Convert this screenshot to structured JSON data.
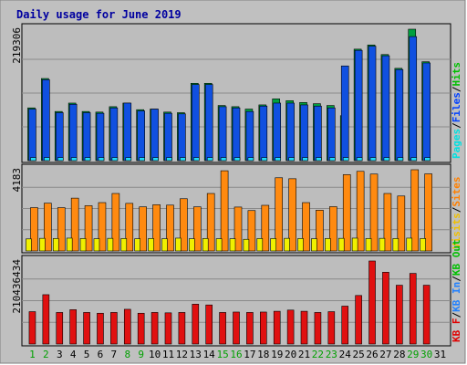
{
  "chart_data": {
    "type": "bar",
    "title": "Daily usage for June 2019",
    "categories": [
      "1",
      "2",
      "3",
      "4",
      "5",
      "6",
      "7",
      "8",
      "9",
      "10",
      "11",
      "12",
      "13",
      "14",
      "15",
      "16",
      "17",
      "18",
      "19",
      "20",
      "21",
      "22",
      "23",
      "24",
      "25",
      "26",
      "27",
      "28",
      "29",
      "30",
      "31"
    ],
    "weekend_days": [
      "1",
      "2",
      "8",
      "9",
      "15",
      "16",
      "22",
      "23",
      "29",
      "30"
    ],
    "panels": [
      {
        "id": "top",
        "ymax_label": "219306",
        "ymax": 219306,
        "legend": [
          {
            "text": "Pages",
            "color": "#00e0e0"
          },
          {
            "text": "Files",
            "color": "#0040ff"
          },
          {
            "text": "Hits",
            "color": "#00c000"
          }
        ],
        "series": [
          {
            "name": "Hits",
            "color": "#00a040",
            "values": [
              88000,
              137000,
              82000,
              96000,
              82000,
              81000,
              90000,
              96000,
              85000,
              86000,
              81000,
              80000,
              129000,
              129000,
              92000,
              90000,
              86000,
              93000,
              103000,
              100000,
              97000,
              95000,
              92000,
              75000,
              186000,
              193000,
              177000,
              154000,
              219306,
              165000,
              0
            ]
          },
          {
            "name": "Files",
            "color": "#1050e0",
            "values": [
              86000,
              135000,
              80000,
              94000,
              80000,
              79000,
              88000,
              96000,
              83000,
              86000,
              79000,
              78000,
              127000,
              127000,
              90000,
              88000,
              82000,
              91000,
              96000,
              96000,
              93000,
              91000,
              88000,
              158000,
              184000,
              191000,
              175000,
              152000,
              207000,
              163000,
              0
            ]
          },
          {
            "name": "Pages",
            "color": "#20e0ff",
            "values": [
              5000,
              5000,
              5000,
              5000,
              5000,
              5000,
              5000,
              5000,
              5000,
              5000,
              5000,
              5000,
              5000,
              5000,
              5000,
              5000,
              5000,
              5000,
              5000,
              5000,
              5000,
              5000,
              5000,
              5000,
              5000,
              5000,
              5000,
              5000,
              5000,
              5000,
              0
            ]
          }
        ]
      },
      {
        "id": "middle",
        "ymax_label": "4183",
        "ymax": 4183,
        "legend": [
          {
            "text": "Visits",
            "color": "#f0c000"
          },
          {
            "text": "Sites",
            "color": "#ff8000"
          }
        ],
        "series": [
          {
            "name": "Sites",
            "color": "#ff8a10",
            "values": [
              2230,
              2460,
              2230,
              2720,
              2330,
              2490,
              2960,
              2450,
              2270,
              2380,
              2360,
              2690,
              2270,
              2960,
              4130,
              2260,
              2080,
              2350,
              3770,
              3720,
              2490,
              2100,
              2280,
              3930,
              4100,
              3960,
              2960,
              2830,
              4183,
              3970,
              0
            ]
          },
          {
            "name": "Visits",
            "color": "#f0f000",
            "values": [
              620,
              650,
              640,
              660,
              640,
              630,
              650,
              640,
              630,
              640,
              630,
              660,
              630,
              640,
              630,
              630,
              600,
              640,
              640,
              650,
              640,
              630,
              640,
              650,
              660,
              640,
              650,
              640,
              660,
              640,
              0
            ]
          }
        ]
      },
      {
        "id": "bottom",
        "ymax_label": "210436434",
        "ymax": 210436434,
        "legend": [
          {
            "text": "KB F",
            "color": "#e00000"
          },
          {
            "text": "KB In",
            "color": "#2080ff"
          },
          {
            "text": "KB Out",
            "color": "#00c000"
          }
        ],
        "series": [
          {
            "name": "KB F",
            "color": "#e01010",
            "values": [
              82000000,
              125000000,
              80000000,
              87000000,
              80000000,
              78000000,
              80000000,
              88000000,
              78000000,
              80000000,
              79000000,
              80000000,
              101000000,
              99000000,
              80000000,
              81000000,
              80000000,
              81000000,
              83000000,
              86000000,
              83000000,
              80000000,
              82000000,
              96000000,
              123000000,
              210436434,
              182000000,
              149000000,
              179000000,
              149000000,
              0
            ]
          }
        ]
      }
    ],
    "grid": true,
    "legend_position": "right-vertical"
  }
}
